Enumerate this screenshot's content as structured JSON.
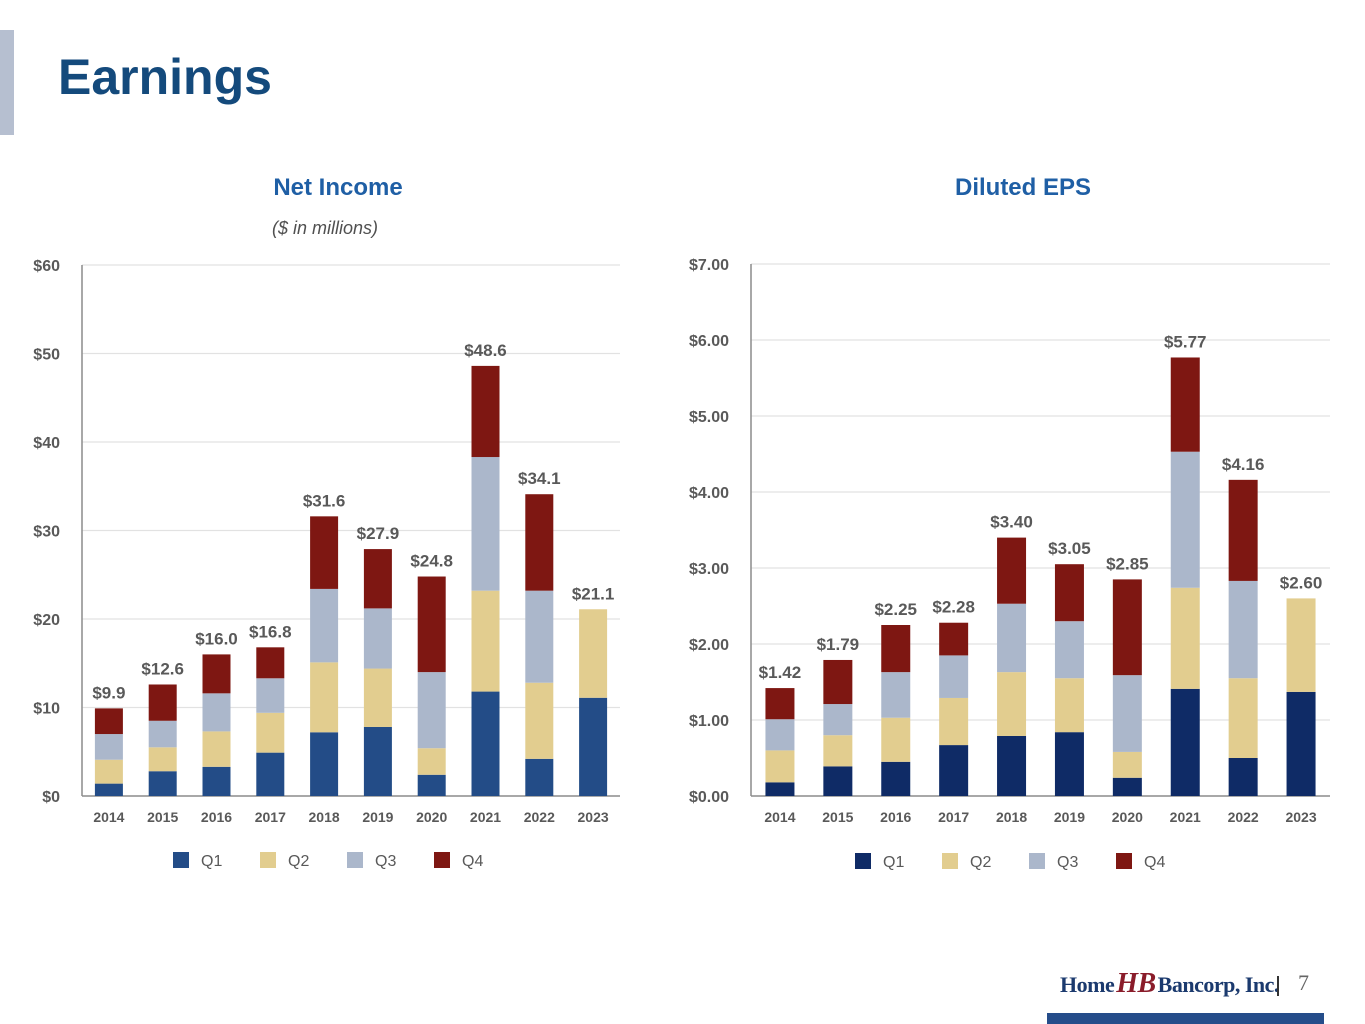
{
  "page": {
    "title": "Earnings",
    "page_number": "7",
    "logo_text_left": "Home",
    "logo_mark": "HB",
    "logo_text_right": "Bancorp, Inc."
  },
  "colors": {
    "Q1_net_income": "#234c87",
    "Q1_eps": "#0f2b66",
    "Q2": "#e2cd8f",
    "Q3": "#abb7cb",
    "Q4": "#7e1712",
    "title": "#144a7c",
    "chart_title": "#1f5fa5"
  },
  "chart_data": [
    {
      "type": "bar",
      "stacked": true,
      "title": "Net Income",
      "subtitle": "($ in millions)",
      "xlabel": "",
      "ylabel": "",
      "ylim": [
        0,
        60
      ],
      "yticks": [
        0,
        10,
        20,
        30,
        40,
        50,
        60
      ],
      "ytick_labels": [
        "$0",
        "$10",
        "$20",
        "$30",
        "$40",
        "$50",
        "$60"
      ],
      "grid": true,
      "legend": "bottom",
      "categories": [
        "2014",
        "2015",
        "2016",
        "2017",
        "2018",
        "2019",
        "2020",
        "2021",
        "2022",
        "2023"
      ],
      "series": [
        {
          "name": "Q1",
          "values": [
            1.4,
            2.8,
            3.3,
            4.9,
            7.2,
            7.8,
            2.4,
            11.8,
            4.2,
            11.1
          ]
        },
        {
          "name": "Q2",
          "values": [
            2.7,
            2.7,
            4.0,
            4.5,
            7.9,
            6.6,
            3.0,
            11.4,
            8.6,
            10.0
          ]
        },
        {
          "name": "Q3",
          "values": [
            2.9,
            3.0,
            4.3,
            3.9,
            8.3,
            6.8,
            8.6,
            15.1,
            10.4,
            0
          ]
        },
        {
          "name": "Q4",
          "values": [
            2.9,
            4.1,
            4.4,
            3.5,
            8.2,
            6.7,
            10.8,
            10.3,
            10.9,
            0
          ]
        }
      ],
      "totals": [
        9.9,
        12.6,
        16.0,
        16.8,
        31.6,
        27.9,
        24.8,
        48.6,
        34.1,
        21.1
      ],
      "total_labels": [
        "$9.9",
        "$12.6",
        "$16.0",
        "$16.8",
        "$31.6",
        "$27.9",
        "$24.8",
        "$48.6",
        "$34.1",
        "$21.1"
      ]
    },
    {
      "type": "bar",
      "stacked": true,
      "title": "Diluted EPS",
      "subtitle": "",
      "xlabel": "",
      "ylabel": "",
      "ylim": [
        0,
        7
      ],
      "yticks": [
        0,
        1,
        2,
        3,
        4,
        5,
        6,
        7
      ],
      "ytick_labels": [
        "$0.00",
        "$1.00",
        "$2.00",
        "$3.00",
        "$4.00",
        "$5.00",
        "$6.00",
        "$7.00"
      ],
      "grid": true,
      "legend": "bottom",
      "categories": [
        "2014",
        "2015",
        "2016",
        "2017",
        "2018",
        "2019",
        "2020",
        "2021",
        "2022",
        "2023"
      ],
      "series": [
        {
          "name": "Q1",
          "values": [
            0.18,
            0.39,
            0.45,
            0.67,
            0.79,
            0.84,
            0.24,
            1.41,
            0.5,
            1.37
          ]
        },
        {
          "name": "Q2",
          "values": [
            0.42,
            0.41,
            0.58,
            0.62,
            0.84,
            0.71,
            0.34,
            1.33,
            1.05,
            1.23
          ]
        },
        {
          "name": "Q3",
          "values": [
            0.41,
            0.41,
            0.6,
            0.56,
            0.9,
            0.75,
            1.01,
            1.79,
            1.28,
            0
          ]
        },
        {
          "name": "Q4",
          "values": [
            0.41,
            0.58,
            0.62,
            0.43,
            0.87,
            0.75,
            1.26,
            1.24,
            1.33,
            0
          ]
        }
      ],
      "totals": [
        1.42,
        1.79,
        2.25,
        2.28,
        3.4,
        3.05,
        2.85,
        5.77,
        4.16,
        2.6
      ],
      "total_labels": [
        "$1.42",
        "$1.79",
        "$2.25",
        "$2.28",
        "$3.40",
        "$3.05",
        "$2.85",
        "$5.77",
        "$4.16",
        "$2.60"
      ]
    }
  ]
}
